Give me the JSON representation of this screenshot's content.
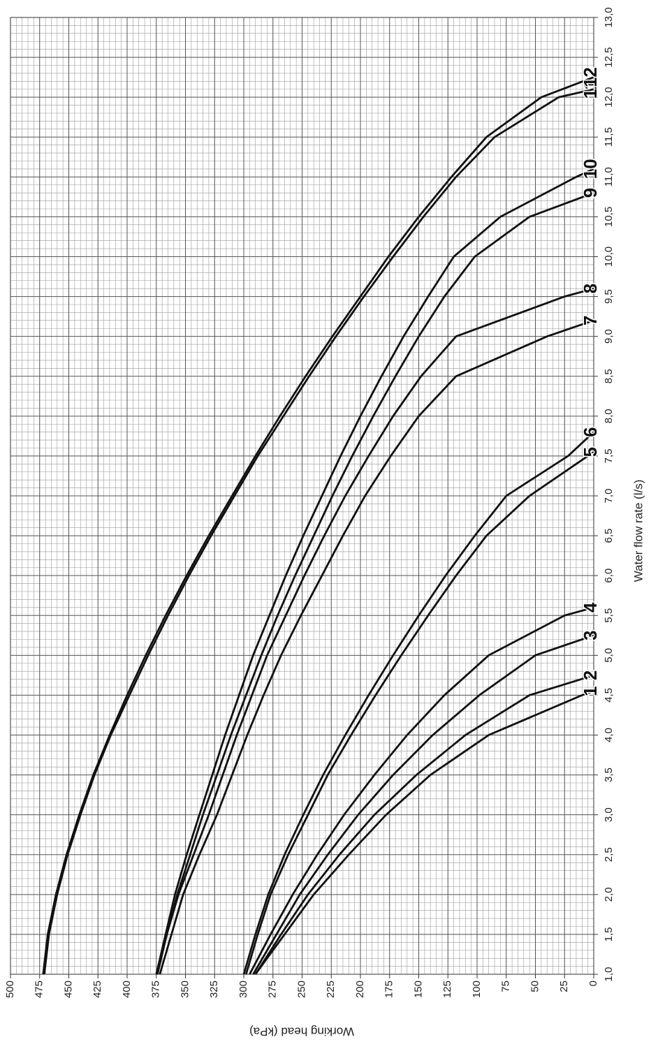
{
  "chart_data": {
    "type": "line",
    "x_label": "Water flow rate (l/s)",
    "y_label": "Working head (kPa)",
    "xlim": [
      1.0,
      13.0
    ],
    "xticks": [
      {
        "value": 1.0,
        "label": "1,0"
      },
      {
        "value": 1.5,
        "label": "1,5"
      },
      {
        "value": 2.0,
        "label": "2,0"
      },
      {
        "value": 2.5,
        "label": "2,5"
      },
      {
        "value": 3.0,
        "label": "3,0"
      },
      {
        "value": 3.5,
        "label": "3,5"
      },
      {
        "value": 4.0,
        "label": "4,0"
      },
      {
        "value": 4.5,
        "label": "4,5"
      },
      {
        "value": 5.0,
        "label": "5,0"
      },
      {
        "value": 5.5,
        "label": "5,5"
      },
      {
        "value": 6.0,
        "label": "6,0"
      },
      {
        "value": 6.5,
        "label": "6,5"
      },
      {
        "value": 7.0,
        "label": "7,0"
      },
      {
        "value": 7.5,
        "label": "7,5"
      },
      {
        "value": 8.0,
        "label": "8,0"
      },
      {
        "value": 8.5,
        "label": "8,5"
      },
      {
        "value": 9.0,
        "label": "9,0"
      },
      {
        "value": 9.5,
        "label": "9,5"
      },
      {
        "value": 10.0,
        "label": "10,0"
      },
      {
        "value": 10.5,
        "label": "10,5"
      },
      {
        "value": 11.0,
        "label": "11,0"
      },
      {
        "value": 11.5,
        "label": "11,5"
      },
      {
        "value": 12.0,
        "label": "12,0"
      },
      {
        "value": 12.5,
        "label": "12,5"
      },
      {
        "value": 13.0,
        "label": "13,0"
      }
    ],
    "ylim": [
      0,
      500
    ],
    "yticks": [
      0,
      25,
      50,
      75,
      100,
      125,
      150,
      175,
      200,
      225,
      250,
      275,
      300,
      325,
      350,
      375,
      400,
      425,
      450,
      475,
      500
    ],
    "grid": true,
    "color": "#111111",
    "series": [
      {
        "name": "1",
        "x": [
          1,
          1.5,
          2,
          2.5,
          3,
          3.5,
          4,
          4.5,
          4.55
        ],
        "values": [
          290,
          265,
          240,
          210,
          178,
          140,
          90,
          10,
          0
        ]
      },
      {
        "name": "2",
        "x": [
          1,
          1.5,
          2,
          2.5,
          3,
          3.5,
          4,
          4.5,
          4.75
        ],
        "values": [
          290,
          268,
          245,
          218,
          188,
          152,
          110,
          55,
          0
        ]
      },
      {
        "name": "3",
        "x": [
          1,
          1.5,
          2,
          2.5,
          3,
          3.5,
          4,
          4.5,
          5,
          5.25
        ],
        "values": [
          292,
          272,
          252,
          228,
          202,
          172,
          138,
          98,
          50,
          0
        ]
      },
      {
        "name": "4",
        "x": [
          1,
          1.5,
          2,
          2.5,
          3,
          3.5,
          4,
          4.5,
          5,
          5.5,
          5.6
        ],
        "values": [
          295,
          277,
          258,
          237,
          214,
          188,
          160,
          128,
          90,
          25,
          0
        ]
      },
      {
        "name": "5",
        "x": [
          1,
          1.5,
          2,
          2.5,
          3,
          3.5,
          4,
          4.5,
          5,
          5.5,
          6,
          6.5,
          7,
          7.55
        ],
        "values": [
          298,
          288,
          277,
          262,
          245,
          228,
          208,
          187,
          165,
          142,
          118,
          92,
          55,
          0
        ]
      },
      {
        "name": "6",
        "x": [
          1,
          1.5,
          2,
          2.5,
          3,
          3.5,
          4,
          4.5,
          5,
          5.5,
          6,
          6.5,
          7,
          7.5,
          7.8
        ],
        "values": [
          300,
          290,
          279,
          265,
          249,
          232,
          213,
          193,
          172,
          150,
          127,
          102,
          75,
          22,
          0
        ]
      },
      {
        "name": "7",
        "x": [
          1,
          1.5,
          2,
          2.5,
          3,
          3.5,
          4,
          4.5,
          5,
          5.5,
          6,
          6.5,
          7,
          7.5,
          8,
          8.5,
          9,
          9.2
        ],
        "values": [
          372,
          362,
          352,
          338,
          323,
          310,
          297,
          283,
          268,
          251,
          233,
          215,
          196,
          174,
          150,
          118,
          40,
          0
        ]
      },
      {
        "name": "8",
        "x": [
          1,
          1.5,
          2,
          2.5,
          3,
          3.5,
          4,
          4.5,
          5,
          5.5,
          6,
          6.5,
          7,
          7.5,
          8,
          8.5,
          9,
          9.5,
          9.6
        ],
        "values": [
          374,
          366,
          356,
          343,
          330,
          318,
          306,
          293,
          280,
          264,
          248,
          231,
          213,
          193,
          172,
          148,
          118,
          25,
          0
        ]
      },
      {
        "name": "9",
        "x": [
          1,
          1.5,
          2,
          2.5,
          3,
          3.5,
          4,
          4.5,
          5,
          5.5,
          6,
          6.5,
          7,
          7.5,
          8,
          8.5,
          9,
          9.5,
          10,
          10.5,
          10.8
        ],
        "values": [
          375,
          366,
          357,
          346,
          335,
          323,
          311,
          298,
          285,
          271,
          256,
          240,
          224,
          207,
          189,
          170,
          150,
          128,
          102,
          55,
          0
        ]
      },
      {
        "name": "10",
        "x": [
          1,
          1.5,
          2,
          2.5,
          3,
          3.5,
          4,
          4.5,
          5,
          5.5,
          6,
          6.5,
          7,
          7.5,
          8,
          8.5,
          9,
          9.5,
          10,
          10.5,
          11,
          11.1
        ],
        "values": [
          375,
          367,
          359,
          349,
          338,
          327,
          316,
          304,
          292,
          278,
          264,
          249,
          233,
          217,
          200,
          182,
          163,
          142,
          120,
          80,
          15,
          0
        ]
      },
      {
        "name": "11",
        "x": [
          1,
          1.5,
          2,
          2.5,
          3,
          3.5,
          4,
          4.5,
          5,
          5.5,
          6,
          6.5,
          7,
          7.5,
          8,
          8.5,
          9,
          9.5,
          10,
          10.5,
          11,
          11.5,
          12,
          12.1
        ],
        "values": [
          471,
          467,
          460,
          451,
          440,
          428,
          414,
          398,
          382,
          365,
          347,
          328,
          308,
          288,
          266,
          244,
          221,
          197,
          172,
          146,
          118,
          85,
          30,
          0
        ]
      },
      {
        "name": "12",
        "x": [
          1,
          1.5,
          2,
          2.5,
          3,
          3.5,
          4,
          4.5,
          5,
          5.5,
          6,
          6.5,
          7,
          7.5,
          8,
          8.5,
          9,
          9.5,
          10,
          10.5,
          11,
          11.5,
          12,
          12.25
        ],
        "values": [
          472,
          468,
          461,
          452,
          441,
          429,
          415,
          400,
          384,
          367,
          349,
          330,
          310,
          290,
          269,
          247,
          224,
          200,
          176,
          150,
          122,
          92,
          45,
          0
        ]
      }
    ]
  }
}
